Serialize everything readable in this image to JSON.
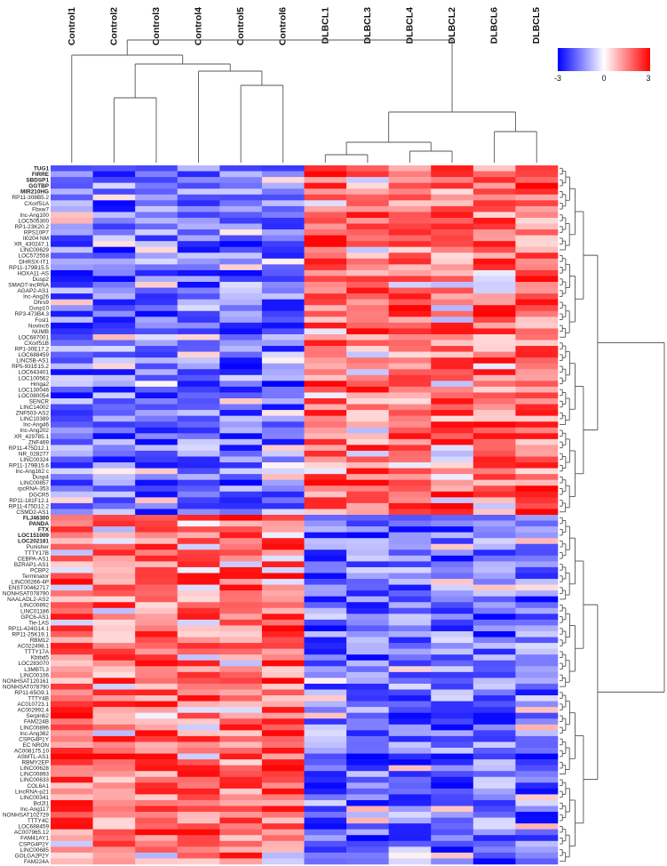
{
  "chart_data": {
    "type": "heatmap",
    "title": "",
    "xlabel": "",
    "ylabel": "",
    "columns": [
      "Control1",
      "Control2",
      "Control3",
      "Control4",
      "Control5",
      "Control6",
      "DLBCL1",
      "DLBCL3",
      "DLBCL4",
      "DLBCL2",
      "DLBCL6",
      "DLBCL5"
    ],
    "rows": [
      "TUG1",
      "FIRRE",
      "SBDSP1",
      "GGTBP",
      "MIR210HG",
      "RP11-308B5.2",
      "CXorf51A",
      "Fbxw7",
      "lnc-Ang100",
      "LOC505300",
      "RP1-23K20.2",
      "RPS10P7",
      "Il0204 NM",
      "XR_430247.1",
      "LINC00629",
      "LOC572558",
      "DHRSX-IT1",
      "RP11-179B15.5",
      "HOXA11-AS",
      "Dusp2",
      "SMAD7-lncRNA",
      "AGAP2-AS1",
      "lnc-Ang26",
      "Dhrs9",
      "Dusp10",
      "RP3-473B4.3",
      "Fosl1",
      "Novlnc6",
      "NUMB",
      "LOC687001",
      "CXorf51B",
      "RP1-30E17.2",
      "LOC688459",
      "LINC5B-AS1",
      "RP5-931E15.2",
      "LOC643401",
      "LOC100562",
      "Hmga2",
      "LOC130046",
      "LOC080054",
      "SENCR",
      "LINC14002",
      "ZNF503-AS2",
      "LINC10389",
      "lnc-Ang46",
      "lnc-Ang202",
      "XR_429785.1",
      "ZNF469",
      "RP11-475D12.1",
      "NR_028277",
      "LINC00324",
      "RP11-179B15.6",
      "lnc-Ang162 c",
      "Dusp4",
      "LINC00857",
      "rpcRNA-353",
      "DGCR5",
      "RP11-181F12.1",
      "RP11-475D12.2",
      "CSMD2-AS1",
      "FLJ46300",
      "PANDA",
      "FTX",
      "LOC151009",
      "LOC202181",
      "Punisher",
      "TTTY17B",
      "CEBPA-AS1",
      "BZRAP1-AS1",
      "PCBP2",
      "Terminator",
      "LINC00266-4P",
      "ENST00462717",
      "NONHSAT078790",
      "NAALADL2-AS2",
      "LINC00892",
      "LINC01186",
      "GPC6-AS1",
      "Tie-1AS",
      "RP11-424G14.1",
      "RP11-25K19.1",
      "RBM12",
      "AC022498.1",
      "TTTY17A",
      "Kbtbd5",
      "LOC283070",
      "L3MBTL3",
      "LINC00106",
      "NONHSAT120161",
      "NONHSAT078790",
      "RP11-65G9.1",
      "TTTY4B",
      "AC010723.1",
      "AC002992.4",
      "Serpinb2",
      "FAM224B",
      "LINC00896",
      "lnc-Ang362",
      "CSPG4P1Y",
      "EC NRON",
      "AC008175.10",
      "ASMTL-AS1",
      "RBMY2EP",
      "LINC00628",
      "LINC00893",
      "LINC00633",
      "COL6A1",
      "LincRNA-p21",
      "LINC00341",
      "Bcl2l1",
      "lnc-Ang117",
      "NONHSAT102729",
      "TTTY4C",
      "LOC688459",
      "AC007965.12",
      "FAM41AY1",
      "CSPG4P2Y",
      "LINC00685",
      "GOLGA2P2Y",
      "FAM224A"
    ],
    "bold_rows": [
      "TUG1",
      "FIRRE",
      "SBDSP1",
      "GGTBP",
      "MIR210HG",
      "FLJ46300",
      "PANDA",
      "FTX",
      "LOC151009",
      "LOC202181"
    ],
    "color_scale": {
      "min": -3,
      "mid": 0,
      "max": 3,
      "ticks": [
        "-3",
        "0",
        "3"
      ],
      "low_color": "#0000ff",
      "mid_color": "#ffffff",
      "high_color": "#ff0000"
    },
    "pattern": {
      "upregulated_rows_in_DLBCL": 60,
      "downregulated_rows_in_DLBCL": 60
    },
    "legend_position": "top-right",
    "column_dendrogram": true,
    "row_dendrogram": "right"
  }
}
